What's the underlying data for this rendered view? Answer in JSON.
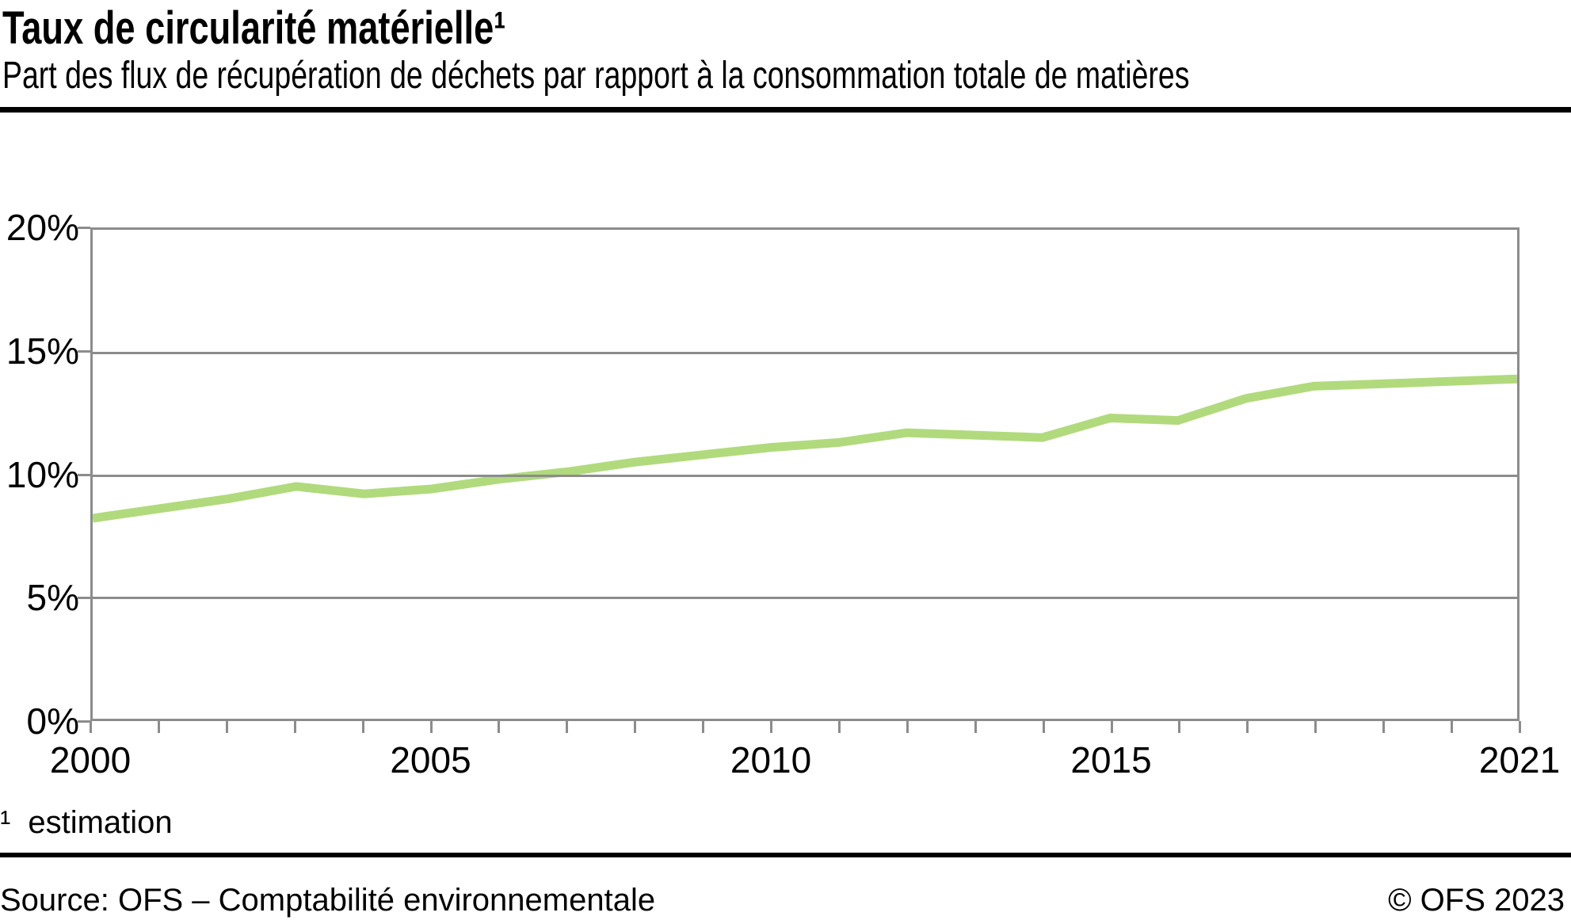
{
  "header": {
    "title": "Taux de circularité matérielle¹",
    "subtitle": "Part des flux de récupération de déchets par rapport à la consommation totale de matières"
  },
  "chart_data": {
    "type": "line",
    "title": "Taux de circularité matérielle",
    "x": [
      2000,
      2001,
      2002,
      2003,
      2004,
      2005,
      2006,
      2007,
      2008,
      2009,
      2010,
      2011,
      2012,
      2013,
      2014,
      2015,
      2016,
      2017,
      2018,
      2019,
      2020,
      2021
    ],
    "series": [
      {
        "name": "Taux de circularité matérielle (estimation)",
        "values": [
          8.2,
          8.6,
          9.0,
          9.5,
          9.2,
          9.4,
          9.8,
          10.1,
          10.5,
          10.8,
          11.1,
          11.3,
          11.7,
          11.6,
          11.5,
          12.3,
          12.2,
          13.1,
          13.6,
          13.7,
          13.8,
          13.9
        ]
      }
    ],
    "xlabel": "",
    "ylabel": "",
    "xlim": [
      2000,
      2021
    ],
    "ylim": [
      0,
      20
    ],
    "yticks": [
      0,
      5,
      10,
      15,
      20
    ],
    "ytick_suffix": "%",
    "xticks_labeled": [
      2000,
      2005,
      2010,
      2015,
      2021
    ],
    "xtick_labels": [
      "2000",
      "2005",
      "2010",
      "2015",
      "2021"
    ],
    "grid": "horizontal",
    "legend": "none"
  },
  "footnote": {
    "marker": "¹",
    "text": "estimation"
  },
  "footer": {
    "source": "Source: OFS – Comptabilité environnementale",
    "copyright": "© OFS 2023"
  },
  "colors": {
    "line": "#b1da7d",
    "grid": "#8c8c8c",
    "axis": "#8c8c8c",
    "rule": "#000000",
    "text": "#000000"
  },
  "line_width": 11
}
